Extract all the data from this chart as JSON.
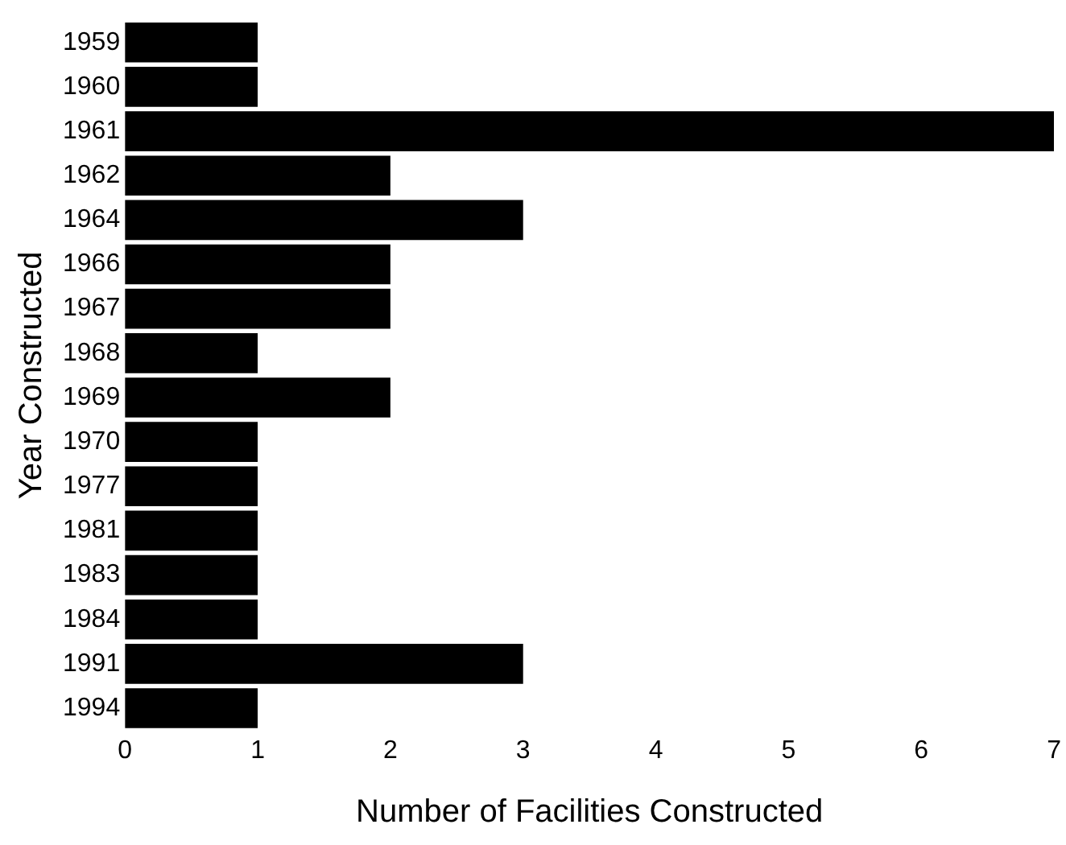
{
  "chart_data": {
    "type": "bar",
    "orientation": "horizontal",
    "xlabel": "Number of Facilities Constructed",
    "ylabel": "Year Constructed",
    "categories": [
      "1959",
      "1960",
      "1961",
      "1962",
      "1964",
      "1966",
      "1967",
      "1968",
      "1969",
      "1970",
      "1977",
      "1981",
      "1983",
      "1984",
      "1991",
      "1994"
    ],
    "values": [
      1,
      1,
      7,
      2,
      3,
      2,
      2,
      1,
      2,
      1,
      1,
      1,
      1,
      1,
      3,
      1
    ],
    "color": "#000000",
    "xlim": [
      0,
      7
    ],
    "xticks": [
      0,
      1,
      2,
      3,
      4,
      5,
      6,
      7
    ],
    "grid": false,
    "legend": false
  }
}
